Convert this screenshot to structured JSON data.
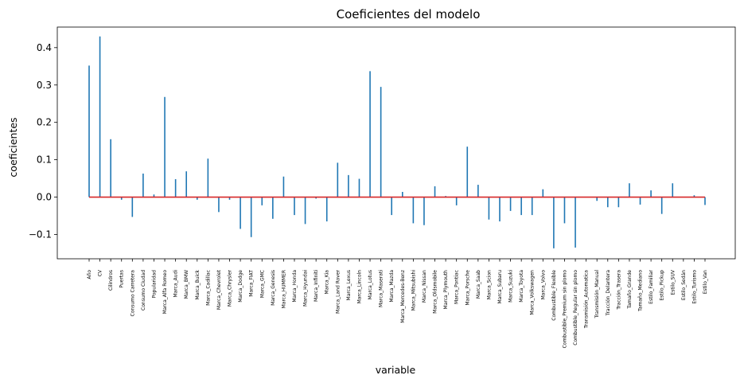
{
  "chart_data": {
    "type": "bar",
    "title": "Coeficientes del modelo",
    "xlabel": "variable",
    "ylabel": "coeficientes",
    "ylim": [
      -0.165,
      0.455
    ],
    "yticks": [
      -0.1,
      0.0,
      0.1,
      0.2,
      0.3,
      0.4
    ],
    "ytick_labels": [
      "−0.1",
      "0.0",
      "0.1",
      "0.2",
      "0.3",
      "0.4"
    ],
    "grid": false,
    "colors": {
      "stem": "#1f77b4",
      "baseline": "#d62728"
    },
    "categories": [
      "Año",
      "CV",
      "Cilindros",
      "Puertas",
      "Consumo Carretera",
      "Consumo Ciudad",
      "Popularidad",
      "Marca_Alfa Romeo",
      "Marca_Audi",
      "Marca_BMW",
      "Marca_Buick",
      "Marca_Cadillac",
      "Marca_Chevrolet",
      "Marca_Chrysler",
      "Marca_Dodge",
      "Marca_FIAT",
      "Marca_GMC",
      "Marca_Genesis",
      "Marca_HUMMER",
      "Marca_Honda",
      "Marca_Hyundai",
      "Marca_Infiniti",
      "Marca_Kia",
      "Marca_Land Rover",
      "Marca_Lexus",
      "Marca_Lincoln",
      "Marca_Lotus",
      "Marca_Maserati",
      "Marca_Mazda",
      "Marca_Mercedes-Benz",
      "Marca_Mitsubishi",
      "Marca_Nissan",
      "Marca_Oldsmobile",
      "Marca_Plymouth",
      "Marca_Pontiac",
      "Marca_Porsche",
      "Marca_Saab",
      "Marca_Scion",
      "Marca_Subaru",
      "Marca_Suzuki",
      "Marca_Toyota",
      "Marca_Volkswagen",
      "Marca_Volvo",
      "Combustible_Flexible",
      "Combustible_Premium sin plomo",
      "Combustible_Regular sin plomo",
      "Transmisión_Automatica",
      "Transmisión_Manual",
      "Tracción_Delantera",
      "Tracción_Trasera",
      "Tamaño_Grande",
      "Tamaño_Mediano",
      "Estilo_Familiar",
      "Estilo_Pickup",
      "Estilo_SUV",
      "Estilo_Sedán",
      "Estilo_Turismo",
      "Estilo_Van"
    ],
    "values": [
      0.352,
      0.43,
      0.155,
      -0.007,
      -0.053,
      0.063,
      0.007,
      0.268,
      0.048,
      0.069,
      -0.007,
      0.103,
      -0.04,
      -0.007,
      -0.085,
      -0.107,
      -0.022,
      -0.058,
      0.055,
      -0.048,
      -0.072,
      -0.004,
      -0.065,
      0.092,
      0.059,
      0.049,
      0.337,
      0.295,
      -0.048,
      0.014,
      -0.07,
      -0.075,
      0.029,
      0.003,
      -0.022,
      0.135,
      0.033,
      -0.06,
      -0.065,
      -0.037,
      -0.048,
      -0.048,
      0.021,
      -0.137,
      -0.07,
      -0.135,
      0.0,
      -0.01,
      -0.027,
      -0.027,
      0.037,
      -0.02,
      0.018,
      -0.045,
      0.037,
      0.0,
      0.005,
      -0.021
    ]
  }
}
